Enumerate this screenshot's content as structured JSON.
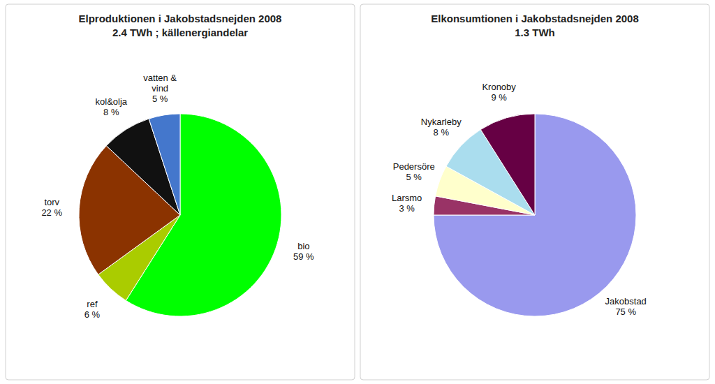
{
  "chart_data": [
    {
      "type": "pie",
      "title": "Elproduktionen i Jakobstadsnejden 2008",
      "subtitle": "2.4 TWh ; källenergiandelar",
      "categories": [
        "bio",
        "ref",
        "torv",
        "kol&olja",
        "vatten &\nvind"
      ],
      "values": [
        59,
        6,
        22,
        8,
        5
      ],
      "value_labels": [
        "59 %",
        "6 %",
        "22 %",
        "8 %",
        "5 %"
      ],
      "colors": [
        "#00ff00",
        "#aacc00",
        "#8B3300",
        "#111111",
        "#4477cc"
      ],
      "data_labels": true
    },
    {
      "type": "pie",
      "title": "Elkonsumtionen i Jakobstadsnejden 2008",
      "subtitle": "1.3 TWh",
      "categories": [
        "Jakobstad",
        "Larsmo",
        "Pedersöre",
        "Nykarleby",
        "Kronoby"
      ],
      "values": [
        75,
        3,
        5,
        8,
        9
      ],
      "value_labels": [
        "75 %",
        "3 %",
        "5 %",
        "8 %",
        "9 %"
      ],
      "colors": [
        "#9999ee",
        "#993366",
        "#ffffcc",
        "#aaddee",
        "#660044"
      ],
      "data_labels": true
    }
  ]
}
